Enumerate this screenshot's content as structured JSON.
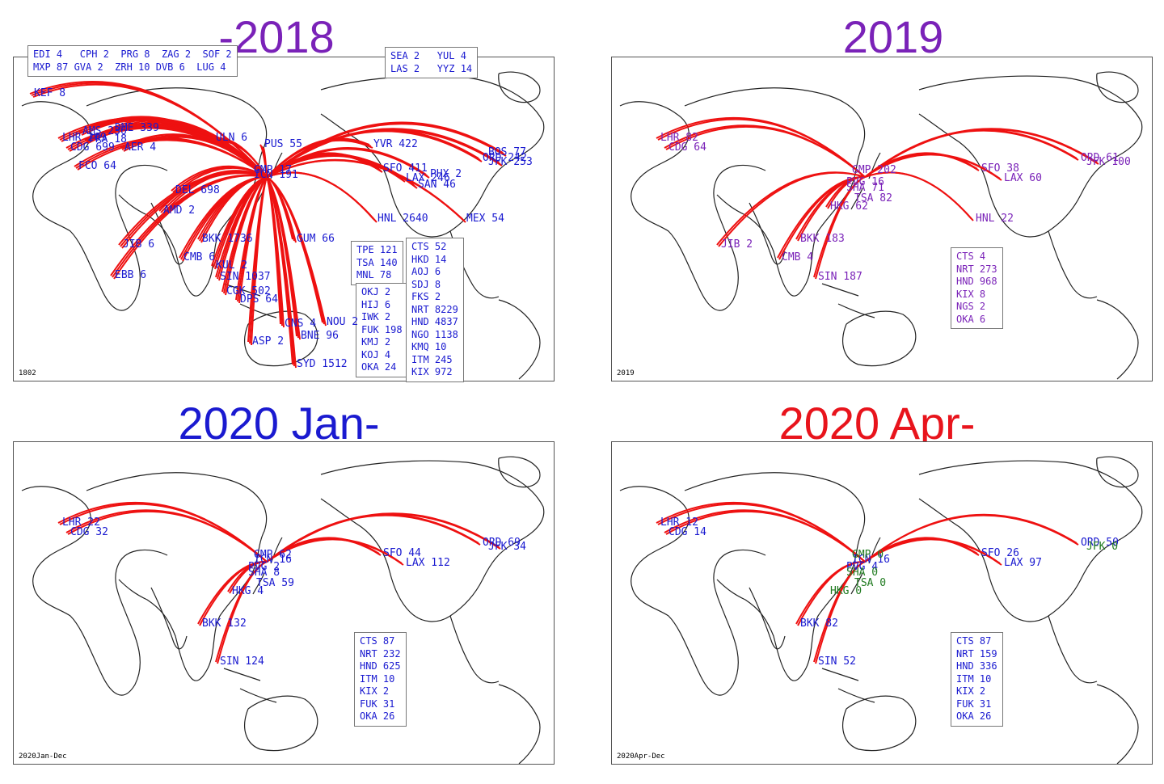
{
  "colors": {
    "blue": "#1a1ad0",
    "purple": "#7a22b8",
    "green": "#1f7a1f",
    "red_title": "#e8141c",
    "route": "#ee1111"
  },
  "panels": [
    {
      "title": "-2018",
      "title_color": "#7a22b8",
      "label_color": "#1a1ad0",
      "corner": "1802",
      "hub": "Japan",
      "legend_top_left": "EDI 4   CPH 2  PRG 8  ZAG 2  SOF 2\nMXP 87 GVA 2  ZRH 10 DVB 6  LUG 4",
      "legend_top_right": "SEA 2   YUL 4\nLAS 2   YYZ 14",
      "legend_mid": "TPE 121\nTSA 140\nMNL 78",
      "legend_japan": "CTS 52\nHKD 14\nAOJ 6\nSDJ 8\nFKS 2\nNRT 8229\nHND 4837\nNGO 1138\nKMQ 10\nITM 245\nKIX 972",
      "legend_japan2": "OKJ 2\nHIJ 6\nIWK 2\nFUK 198\nKMJ 2\nKOJ 4\nOKA 24",
      "labels": [
        "KEF 8",
        "LHR 269",
        "CDG 699",
        "FCO 64",
        "AMS 236",
        "FRA 18",
        "DME 339",
        "AER 4",
        "ULN 6",
        "PUS 55",
        "GMP 17",
        "ICN 191",
        "DEL 698",
        "AMD 2",
        "JIB 6",
        "EBB 6",
        "BKK 1736",
        "CMB 6",
        "KUL 2",
        "SIN 1037",
        "CGK 502",
        "DPS 64",
        "GUM 66",
        "CNS 4",
        "ASP 2",
        "BNE 96",
        "NOU 2",
        "SYD 1512",
        "YVR 422",
        "SFO 411",
        "LAX 246",
        "SAN 46",
        "PHX 2",
        "HNL 2640",
        "MEX 54",
        "ORD 242",
        "BOS 77",
        "JFK 253"
      ]
    },
    {
      "title": "2019",
      "title_color": "#7a22b8",
      "label_color": "#7a22b8",
      "corner": "2019",
      "legend_japan": "CTS 4\nNRT 273\nHND 968\nKIX 8\nNGS 2\nOKA 6",
      "labels": [
        "LHR 82",
        "CDG 64",
        "GMP 202",
        "PVG 16",
        "SHA 71",
        "HKG 62",
        "BKK 183",
        "TSA 82",
        "JIB 2",
        "CMB 4",
        "SIN 187",
        "SFO 38",
        "LAX 60",
        "ORD 61",
        "JFK 100",
        "HNL 22"
      ]
    },
    {
      "title": "2020 Jan-",
      "title_color": "#1a1ad0",
      "label_color": "#1a1ad0",
      "corner": "2020Jan-Dec",
      "legend_japan": "CTS 87\nNRT 232\nHND 625\nITM 10\nKIX 2\nFUK 31\nOKA 26",
      "labels": [
        "LHR 22",
        "CDG 32",
        "ICN 16",
        "GMP 62",
        "PVG 2",
        "SHA 8",
        "HKG 4",
        "TSA 59",
        "BKK 132",
        "SIN 124",
        "SFO 44",
        "LAX 112",
        "ORD 69",
        "JFK 34"
      ]
    },
    {
      "title": "2020 Apr-",
      "title_color": "#e8141c",
      "label_color": "#1a1ad0",
      "corner": "2020Apr-Dec",
      "legend_japan": "CTS 87\nNRT 159\nHND 336\nITM 10\nKIX 2\nFUK 31\nOKA 26",
      "labels": [
        "LHR 12",
        "CDG 14",
        "ICN 16",
        "GMP 0",
        "PVG 4",
        "SHA 0",
        "HKG 0",
        "TSA 0",
        "BKK 82",
        "SIN 52",
        "SFO 26",
        "LAX 97",
        "ORD 50",
        "JFK 0"
      ],
      "zero_labels": [
        "GMP 0",
        "SHA 0",
        "HKG 0",
        "TSA 0",
        "JFK 0"
      ]
    }
  ]
}
